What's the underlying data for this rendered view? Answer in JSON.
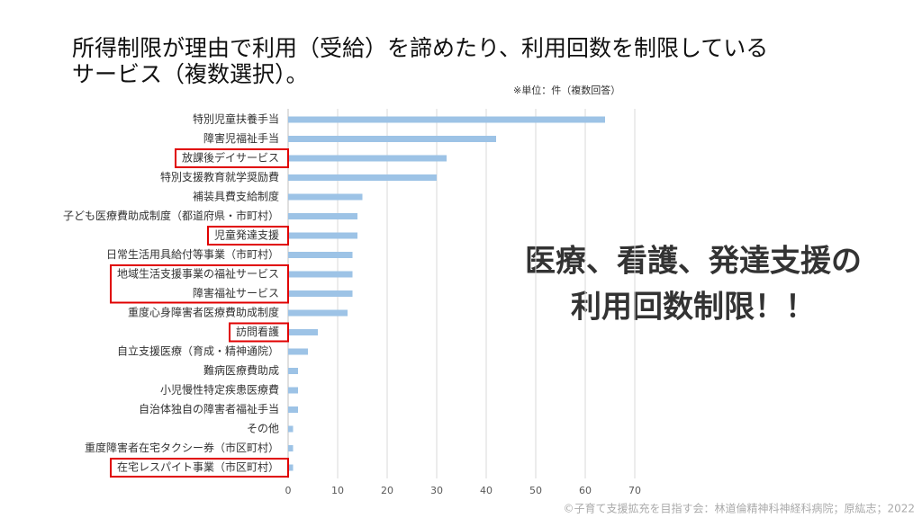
{
  "chart_data": {
    "type": "barh",
    "title_lines": [
      "所得制限が理由で利用（受給）を諦めたり、利用回数を制限している",
      "サービス（複数選択）。"
    ],
    "unit_note": "※単位：件（複数回答）",
    "categories": [
      "特別児童扶養手当",
      "障害児福祉手当",
      "放課後デイサービス",
      "特別支援教育就学奨励費",
      "補装具費支給制度",
      "子ども医療費助成制度（都道府県・市町村）",
      "児童発達支援",
      "日常生活用具給付等事業（市町村）",
      "地域生活支援事業の福祉サービス",
      "障害福祉サービス",
      "重度心身障害者医療費助成制度",
      "訪問看護",
      "自立支援医療（育成・精神通院）",
      "難病医療費助成",
      "小児慢性特定疾患医療費",
      "自治体独自の障害者福祉手当",
      "その他",
      "重度障害者在宅タクシー券（市区町村）",
      "在宅レスパイト事業（市区町村）"
    ],
    "values": [
      64,
      42,
      32,
      30,
      15,
      14,
      14,
      13,
      13,
      13,
      12,
      6,
      4,
      2,
      2,
      2,
      1,
      1,
      1
    ],
    "color": "#9dc3e6",
    "highlight_groups": [
      [
        2
      ],
      [
        6
      ],
      [
        8,
        9
      ],
      [
        11
      ],
      [
        18
      ]
    ],
    "highlight_color": "#e00000",
    "xlim": [
      0,
      70
    ],
    "xticks": [
      0,
      10,
      20,
      30,
      40,
      50,
      60,
      70
    ],
    "callout_lines": [
      "医療、看護、発達支援の",
      "利用回数制限！！"
    ],
    "callout_color": "#ff0000",
    "footer": "©子育て支援拡充を目指す会：林道倫精神科神経科病院；原紘志；2022"
  }
}
